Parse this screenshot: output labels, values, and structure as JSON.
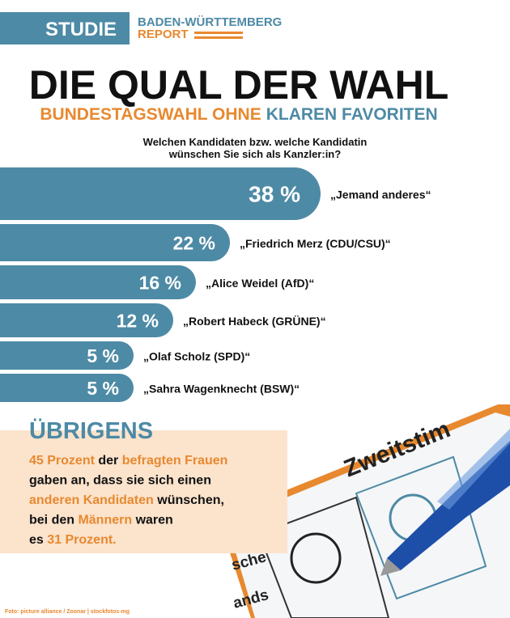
{
  "header": {
    "badge": "STUDIE",
    "brand_line1": "BADEN-WÜRTTEMBERG",
    "brand_line2": "REPORT",
    "title": "DIE QUAL DER WAHL",
    "subtitle_part1": "BUNDESTAGSWAHL OHNE",
    "subtitle_part2": "KLAREN FAVORITEN"
  },
  "chart_data": {
    "type": "bar",
    "orientation": "horizontal",
    "title": [
      "Welchen Kandidaten bzw. welche Kandidatin",
      "wünschen Sie sich als Kanzler:in?"
    ],
    "categories": [
      "„Jemand anderes“",
      "„Friedrich Merz (CDU/CSU)“",
      "„Alice Weidel (AfD)“",
      "„Robert Habeck (GRÜNE)“",
      "„Olaf Scholz (SPD)“",
      "„Sahra Wagenknecht (BSW)“"
    ],
    "values": [
      38,
      22,
      16,
      12,
      5,
      5
    ],
    "value_labels": [
      "38 %",
      "22 %",
      "16 %",
      "12 %",
      "5 %",
      "5 %"
    ],
    "color": "#4d8aa5"
  },
  "note": {
    "title": "ÜBRIGENS",
    "lines": [
      [
        {
          "text": "45 Prozent",
          "highlight": true
        },
        {
          "text": " der ",
          "highlight": false
        },
        {
          "text": "befragten Frauen",
          "highlight": true
        }
      ],
      [
        {
          "text": "gaben an, dass sie sich einen",
          "highlight": false
        }
      ],
      [
        {
          "text": "anderen Kandidaten",
          "highlight": true
        },
        {
          "text": " wünschen,",
          "highlight": false
        }
      ],
      [
        {
          "text": "bei den ",
          "highlight": false
        },
        {
          "text": "Männern",
          "highlight": true
        },
        {
          "text": " waren",
          "highlight": false
        }
      ],
      [
        {
          "text": "es ",
          "highlight": false
        },
        {
          "text": "31 Prozent.",
          "highlight": true
        }
      ]
    ]
  },
  "photo": {
    "ballot_heading": "Zweitstim",
    "ballot_word1": "sche",
    "ballot_word2": "ands"
  },
  "credit": "Foto: picture alliance / Zoonar | stockfotos-mg"
}
